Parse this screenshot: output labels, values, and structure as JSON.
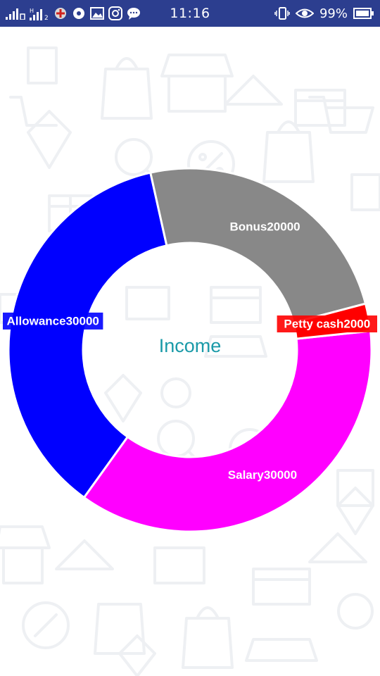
{
  "status_bar": {
    "time": "11:16",
    "battery": "99%",
    "bg_color": "#2c3e8f",
    "left_icons": [
      "signal-bars-icon",
      "signal-bars-h-icon",
      "sim-2-icon",
      "app-notification-icon",
      "media-notification-icon",
      "gallery-icon",
      "instagram-icon",
      "chat-icon"
    ],
    "right_icons": [
      "vibrate-icon",
      "eye-icon",
      "battery-icon"
    ]
  },
  "chart_data": {
    "type": "pie",
    "donut": true,
    "center_label": "Income",
    "slices": [
      {
        "label": "Salary",
        "value": 30000,
        "display": "Salary30000",
        "color": "#ff00ff"
      },
      {
        "label": "Allowance",
        "value": 30000,
        "display": "Allowance30000",
        "color": "#0000ff"
      },
      {
        "label": "Bonus",
        "value": 20000,
        "display": "Bonus20000",
        "color": "#888888"
      },
      {
        "label": "Petty cash",
        "value": 2000,
        "display": "Petty cash2000",
        "color": "#ff0000"
      }
    ],
    "center_label_color": "#1a9aa8"
  }
}
